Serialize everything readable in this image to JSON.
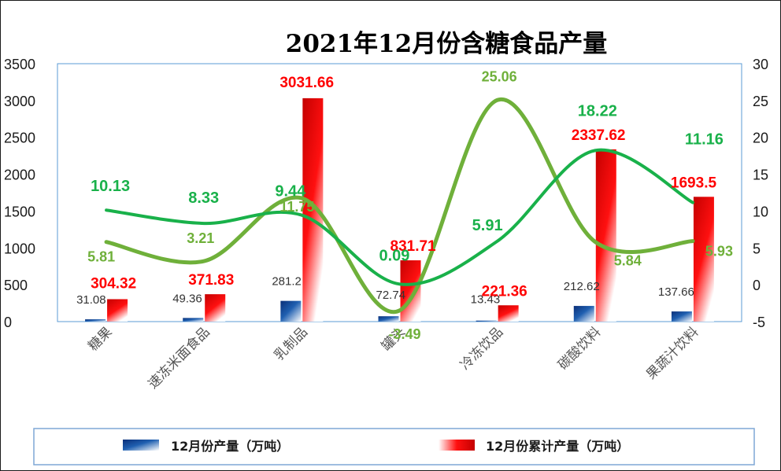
{
  "chart_data": {
    "type": "bar",
    "title": "2021年12月份含糖食品产量",
    "categories": [
      "糖果",
      "速冻米面食品",
      "乳制品",
      "罐头",
      "冷冻饮品",
      "碳酸饮料",
      "果蔬汁饮料"
    ],
    "y_left": {
      "min": 0,
      "max": 3500,
      "ticks": [
        "0",
        "500",
        "1000",
        "1500",
        "2000",
        "2500",
        "3000",
        "3500"
      ]
    },
    "y_right": {
      "min": -5,
      "max": 30,
      "ticks": [
        "-5",
        "0",
        "5",
        "10",
        "15",
        "20",
        "25",
        "30"
      ]
    },
    "series": [
      {
        "name": "12月份产量（万吨）",
        "kind": "bar",
        "axis": "left",
        "color": "#1f5fb0",
        "values": [
          31.08,
          49.36,
          281.2,
          72.74,
          13.43,
          212.62,
          137.66
        ],
        "labels": [
          "31.08",
          "49.36",
          "281.2",
          "72.74",
          "13.43",
          "212.62",
          "137.66"
        ]
      },
      {
        "name": "12月份累计产量（万吨）",
        "kind": "bar",
        "axis": "left",
        "color": "#e00000",
        "values": [
          304.32,
          371.83,
          3031.66,
          831.71,
          221.36,
          2337.62,
          1693.5
        ],
        "labels": [
          "304.32",
          "371.83",
          "3031.66",
          "831.71",
          "221.36",
          "2337.62",
          "1693.5"
        ]
      },
      {
        "kind": "line",
        "axis": "right",
        "color": "#19b14a",
        "values": [
          10.13,
          8.33,
          9.44,
          0.09,
          5.91,
          18.22,
          11.16
        ],
        "labels": [
          "10.13",
          "8.33",
          "9.44",
          "0.09",
          "5.91",
          "18.22",
          "11.16"
        ]
      },
      {
        "kind": "line",
        "axis": "right",
        "color": "#6fb03a",
        "values": [
          5.81,
          3.21,
          11.75,
          -3.49,
          25.06,
          5.84,
          5.93
        ],
        "labels": [
          "5.81",
          "3.21",
          "11.75",
          "-3.49",
          "25.06",
          "5.84",
          "5.93"
        ]
      }
    ],
    "legend": {
      "position": "bottom"
    },
    "grid": false
  }
}
